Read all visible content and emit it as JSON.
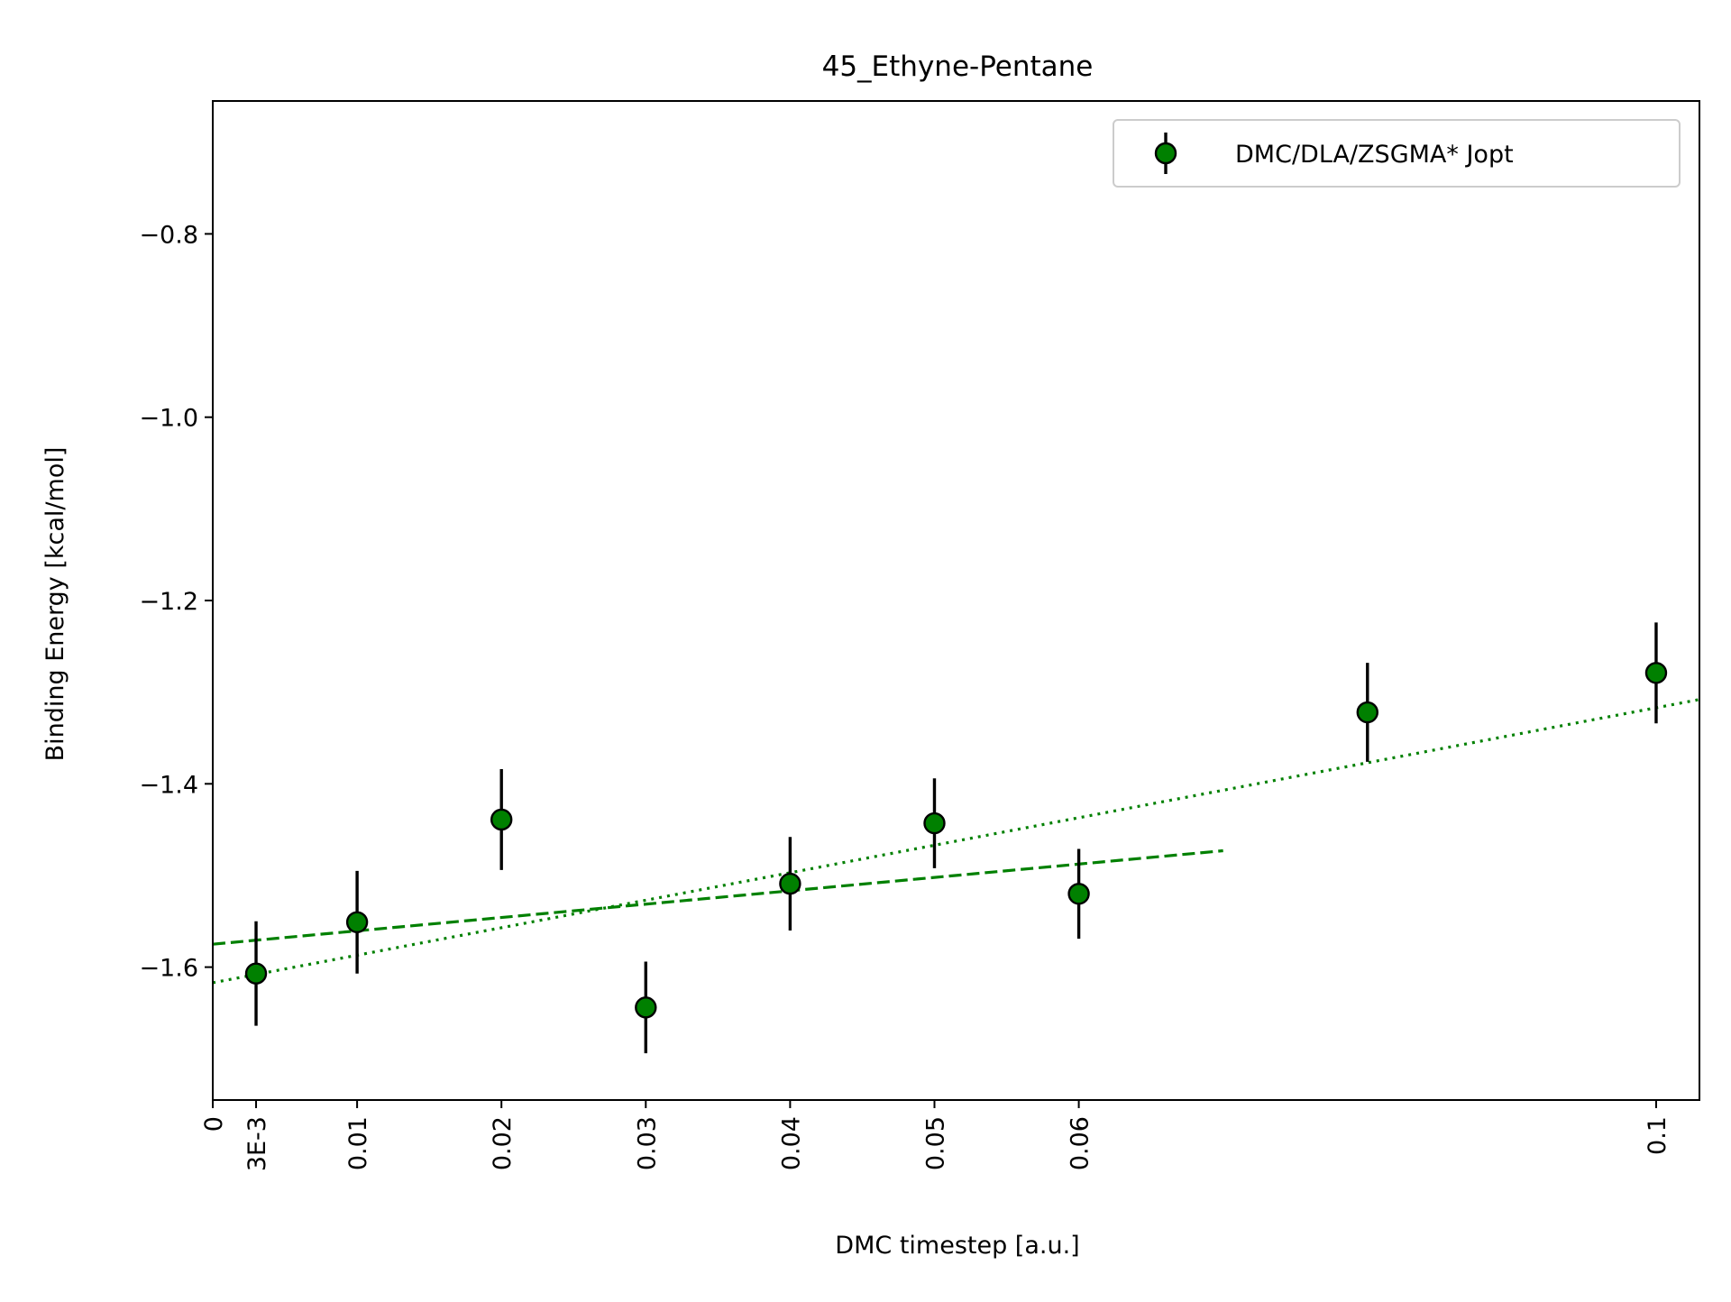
{
  "chart_data": {
    "type": "scatter",
    "title": "45_Ethyne-Pentane",
    "xlabel": "DMC timestep [a.u.]",
    "ylabel": "Binding Energy [kcal/mol]",
    "xlim": [
      0,
      0.103
    ],
    "ylim": [
      -1.745,
      -0.655
    ],
    "x_ticks": [
      {
        "value": 0,
        "label": "0"
      },
      {
        "value": 0.003,
        "label": "3E-3"
      },
      {
        "value": 0.01,
        "label": "0.01"
      },
      {
        "value": 0.02,
        "label": "0.02"
      },
      {
        "value": 0.03,
        "label": "0.03"
      },
      {
        "value": 0.04,
        "label": "0.04"
      },
      {
        "value": 0.05,
        "label": "0.05"
      },
      {
        "value": 0.06,
        "label": "0.06"
      },
      {
        "value": 0.1,
        "label": "0.1"
      }
    ],
    "y_ticks": [
      {
        "value": -0.8,
        "label": "−0.8"
      },
      {
        "value": -1.0,
        "label": "−1.0"
      },
      {
        "value": -1.2,
        "label": "−1.2"
      },
      {
        "value": -1.4,
        "label": "−1.4"
      },
      {
        "value": -1.6,
        "label": "−1.6"
      }
    ],
    "grid": false,
    "legend_position": "top-right",
    "series": [
      {
        "name": "DMC/DLA/ZSGMA* Jopt",
        "color": "#008000",
        "marker_edge": "#000000",
        "errorbar_color": "#000000",
        "x": [
          0.003,
          0.01,
          0.02,
          0.03,
          0.04,
          0.05,
          0.06,
          0.08,
          0.1
        ],
        "y": [
          -1.607,
          -1.551,
          -1.439,
          -1.644,
          -1.509,
          -1.443,
          -1.52,
          -1.322,
          -1.279
        ],
        "yerr": [
          0.057,
          0.056,
          0.055,
          0.05,
          0.051,
          0.049,
          0.049,
          0.054,
          0.055
        ]
      }
    ],
    "fit_lines": [
      {
        "style": "dashed",
        "color": "#008000",
        "x": [
          0,
          0.07
        ],
        "y": [
          -1.575,
          -1.473
        ]
      },
      {
        "style": "dotted",
        "color": "#008000",
        "x": [
          0,
          0.103
        ],
        "y": [
          -1.617,
          -1.308
        ]
      }
    ]
  }
}
